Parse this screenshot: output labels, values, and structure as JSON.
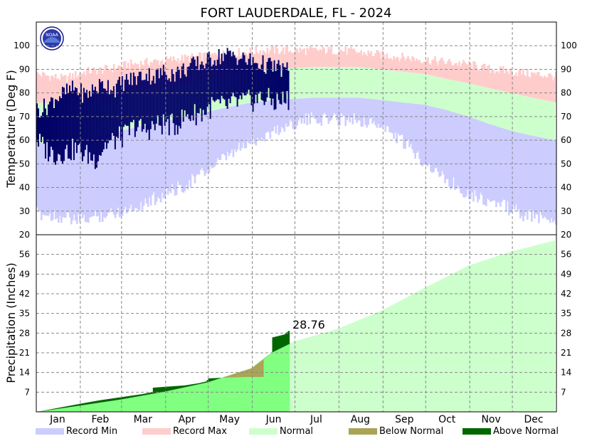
{
  "chart_data": {
    "type": "area",
    "title": "FORT LAUDERDALE, FL - 2024",
    "logo_text": "NOAA",
    "months": [
      "Jan",
      "Feb",
      "Mar",
      "Apr",
      "May",
      "Jun",
      "Jul",
      "Aug",
      "Sep",
      "Oct",
      "Nov",
      "Dec"
    ],
    "temperature": {
      "ylabel": "Temperature (Deg F)",
      "ylim": [
        20,
        110
      ],
      "ticks": [
        20,
        30,
        40,
        50,
        60,
        70,
        80,
        90,
        100
      ],
      "normal_high": [
        [
          1,
          76
        ],
        [
          15,
          75
        ],
        [
          32,
          76
        ],
        [
          46,
          77
        ],
        [
          60,
          79
        ],
        [
          74,
          80
        ],
        [
          91,
          82
        ],
        [
          105,
          84
        ],
        [
          121,
          86
        ],
        [
          135,
          87
        ],
        [
          152,
          89
        ],
        [
          166,
          90
        ],
        [
          182,
          90.5
        ],
        [
          196,
          91
        ],
        [
          213,
          91
        ],
        [
          227,
          91
        ],
        [
          244,
          90
        ],
        [
          258,
          89
        ],
        [
          274,
          88
        ],
        [
          288,
          86
        ],
        [
          305,
          84
        ],
        [
          319,
          82
        ],
        [
          335,
          80
        ],
        [
          349,
          78
        ],
        [
          366,
          76
        ]
      ],
      "normal_low": [
        [
          1,
          59
        ],
        [
          15,
          59
        ],
        [
          32,
          60
        ],
        [
          46,
          62
        ],
        [
          60,
          64
        ],
        [
          74,
          66
        ],
        [
          91,
          68
        ],
        [
          105,
          70
        ],
        [
          121,
          72
        ],
        [
          135,
          74
        ],
        [
          152,
          76
        ],
        [
          166,
          77
        ],
        [
          182,
          77.5
        ],
        [
          196,
          78
        ],
        [
          213,
          78
        ],
        [
          227,
          78
        ],
        [
          244,
          77
        ],
        [
          258,
          76
        ],
        [
          274,
          75
        ],
        [
          288,
          73
        ],
        [
          305,
          70
        ],
        [
          319,
          67
        ],
        [
          335,
          64
        ],
        [
          349,
          62
        ],
        [
          366,
          60
        ]
      ],
      "record_max_points": [
        [
          1,
          88
        ],
        [
          20,
          86
        ],
        [
          35,
          89
        ],
        [
          50,
          90
        ],
        [
          65,
          92
        ],
        [
          80,
          93
        ],
        [
          95,
          94
        ],
        [
          110,
          95
        ],
        [
          125,
          96
        ],
        [
          140,
          97
        ],
        [
          160,
          98
        ],
        [
          180,
          98
        ],
        [
          200,
          98
        ],
        [
          215,
          98
        ],
        [
          230,
          97
        ],
        [
          245,
          96
        ],
        [
          260,
          95
        ],
        [
          275,
          94
        ],
        [
          290,
          93
        ],
        [
          305,
          92
        ],
        [
          320,
          90
        ],
        [
          335,
          89
        ],
        [
          350,
          88
        ],
        [
          366,
          87
        ]
      ],
      "record_min_points": [
        [
          1,
          32
        ],
        [
          15,
          31
        ],
        [
          30,
          29
        ],
        [
          45,
          31
        ],
        [
          60,
          33
        ],
        [
          75,
          36
        ],
        [
          90,
          40
        ],
        [
          105,
          44
        ],
        [
          120,
          50
        ],
        [
          135,
          56
        ],
        [
          150,
          62
        ],
        [
          165,
          66
        ],
        [
          180,
          70
        ],
        [
          195,
          72
        ],
        [
          210,
          72
        ],
        [
          225,
          72
        ],
        [
          240,
          70
        ],
        [
          255,
          64
        ],
        [
          270,
          56
        ],
        [
          285,
          48
        ],
        [
          300,
          42
        ],
        [
          315,
          38
        ],
        [
          330,
          35
        ],
        [
          345,
          31
        ],
        [
          366,
          30
        ]
      ],
      "observed_2024": {
        "last_day": 178,
        "points": [
          [
            1,
            60,
            73
          ],
          [
            7,
            56,
            74
          ],
          [
            14,
            54,
            78
          ],
          [
            21,
            55,
            80
          ],
          [
            28,
            56,
            82
          ],
          [
            35,
            54,
            79
          ],
          [
            42,
            52,
            82
          ],
          [
            49,
            58,
            84
          ],
          [
            56,
            60,
            82
          ],
          [
            63,
            62,
            85
          ],
          [
            70,
            66,
            86
          ],
          [
            77,
            64,
            88
          ],
          [
            84,
            66,
            87
          ],
          [
            91,
            67,
            89
          ],
          [
            98,
            66,
            88
          ],
          [
            105,
            70,
            90
          ],
          [
            112,
            71,
            92
          ],
          [
            119,
            72,
            93
          ],
          [
            126,
            75,
            95
          ],
          [
            133,
            74,
            96
          ],
          [
            140,
            76,
            96
          ],
          [
            147,
            76,
            94
          ],
          [
            154,
            77,
            93
          ],
          [
            161,
            78,
            92
          ],
          [
            168,
            76,
            91
          ],
          [
            175,
            77,
            90
          ],
          [
            178,
            77,
            89
          ]
        ]
      }
    },
    "precipitation": {
      "ylabel": "Precipitation (Inches)",
      "ylim": [
        0,
        63
      ],
      "ticks": [
        7,
        14,
        21,
        28,
        35,
        42,
        49,
        56
      ],
      "right_ticks": [
        7,
        14,
        21,
        28,
        35,
        42,
        49,
        56
      ],
      "annotation": "28.76",
      "normal_cumulative": [
        [
          1,
          0
        ],
        [
          31,
          2.2
        ],
        [
          60,
          4.4
        ],
        [
          91,
          7.2
        ],
        [
          121,
          10.5
        ],
        [
          152,
          15.5
        ],
        [
          166,
          21
        ],
        [
          182,
          25
        ],
        [
          213,
          29.5
        ],
        [
          244,
          36
        ],
        [
          274,
          44
        ],
        [
          305,
          52
        ],
        [
          335,
          57
        ],
        [
          366,
          61
        ]
      ],
      "actual_cumulative": [
        [
          1,
          0
        ],
        [
          20,
          1.8
        ],
        [
          35,
          3.2
        ],
        [
          45,
          4.1
        ],
        [
          60,
          5.2
        ],
        [
          75,
          6.3
        ],
        [
          82,
          7.0
        ],
        [
          83,
          8.6
        ],
        [
          91,
          8.9
        ],
        [
          105,
          9.4
        ],
        [
          115,
          10.2
        ],
        [
          120,
          10.8
        ],
        [
          122,
          11.9
        ],
        [
          135,
          12.2
        ],
        [
          150,
          12.4
        ],
        [
          160,
          12.4
        ],
        [
          161,
          18.8
        ],
        [
          166,
          21.0
        ],
        [
          167,
          26.5
        ],
        [
          175,
          27.5
        ],
        [
          178,
          28.76
        ]
      ]
    },
    "legend": [
      {
        "label": "Record Min",
        "color": "#ccccff"
      },
      {
        "label": "Record Max",
        "color": "#ffcccc"
      },
      {
        "label": "Normal",
        "color": "#ccffcc"
      },
      {
        "label": "Below Normal",
        "color": "#aaa455"
      },
      {
        "label": "Above Normal",
        "color": "#006600"
      }
    ],
    "colors": {
      "record_min": "#ccccff",
      "record_max": "#ffcccc",
      "normal": "#ccffcc",
      "observed_temp": "#000066",
      "below_normal": "#aaa455",
      "above_normal": "#006600",
      "precip_actual": "#80ff80"
    }
  }
}
